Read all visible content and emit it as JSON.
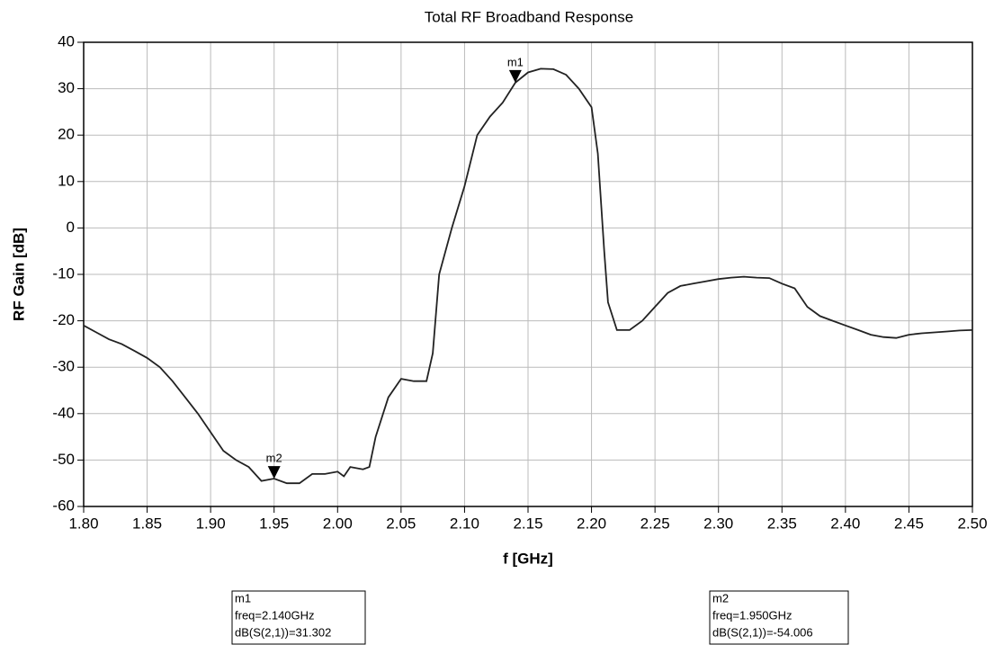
{
  "chart_data": {
    "type": "line",
    "title": "Total RF Broadband Response",
    "x_label": "f  [GHz]",
    "y_label": "RF Gain  [dB]",
    "xlim": [
      1.8,
      2.5
    ],
    "ylim": [
      -60,
      40
    ],
    "xticks": [
      {
        "value": 1.8,
        "label": "1.80"
      },
      {
        "value": 1.85,
        "label": "1.85"
      },
      {
        "value": 1.9,
        "label": "1.90"
      },
      {
        "value": 1.95,
        "label": "1.95"
      },
      {
        "value": 2.0,
        "label": "2.00"
      },
      {
        "value": 2.05,
        "label": "2.05"
      },
      {
        "value": 2.1,
        "label": "2.10"
      },
      {
        "value": 2.15,
        "label": "2.15"
      },
      {
        "value": 2.2,
        "label": "2.20"
      },
      {
        "value": 2.25,
        "label": "2.25"
      },
      {
        "value": 2.3,
        "label": "2.30"
      },
      {
        "value": 2.35,
        "label": "2.35"
      },
      {
        "value": 2.4,
        "label": "2.40"
      },
      {
        "value": 2.45,
        "label": "2.45"
      },
      {
        "value": 2.5,
        "label": "2.50"
      }
    ],
    "yticks": [
      -60,
      -50,
      -40,
      -30,
      -20,
      -10,
      0,
      10,
      20,
      30,
      40
    ],
    "grid": true,
    "color": "#222222",
    "x": [
      1.8,
      1.81,
      1.82,
      1.83,
      1.84,
      1.85,
      1.86,
      1.87,
      1.88,
      1.89,
      1.9,
      1.91,
      1.92,
      1.93,
      1.94,
      1.95,
      1.96,
      1.97,
      1.98,
      1.99,
      2.0,
      2.005,
      2.01,
      2.02,
      2.025,
      2.03,
      2.04,
      2.05,
      2.06,
      2.07,
      2.075,
      2.08,
      2.09,
      2.1,
      2.11,
      2.12,
      2.13,
      2.14,
      2.15,
      2.16,
      2.17,
      2.18,
      2.19,
      2.2,
      2.205,
      2.21,
      2.213,
      2.22,
      2.23,
      2.24,
      2.25,
      2.26,
      2.27,
      2.28,
      2.29,
      2.3,
      2.31,
      2.32,
      2.33,
      2.34,
      2.35,
      2.36,
      2.37,
      2.38,
      2.39,
      2.4,
      2.41,
      2.42,
      2.43,
      2.44,
      2.45,
      2.46,
      2.47,
      2.48,
      2.49,
      2.5
    ],
    "values": [
      -21,
      -22.5,
      -24,
      -25,
      -26.5,
      -28,
      -30,
      -33,
      -36.5,
      -40,
      -44,
      -48,
      -50,
      -51.5,
      -54.5,
      -54,
      -55,
      -55,
      -53,
      -53,
      -52.5,
      -53.5,
      -51.5,
      -52,
      -51.5,
      -45,
      -36.5,
      -32.5,
      -33,
      -33,
      -27,
      -10,
      0,
      9,
      20,
      24,
      27,
      31.302,
      33.5,
      34.3,
      34.2,
      33,
      30,
      26,
      16,
      -5,
      -16,
      -22,
      -22,
      -20,
      -17,
      -14,
      -12.5,
      -12,
      -11.5,
      -11,
      -10.7,
      -10.5,
      -10.7,
      -10.8,
      -12,
      -13,
      -17,
      -19,
      -20,
      -21,
      -22,
      -23,
      -23.5,
      -23.7,
      -23,
      -22.7,
      -22.5,
      -22.3,
      -22.1,
      -22
    ],
    "markers": [
      {
        "name": "m1",
        "x": 2.14,
        "y": 31.302,
        "freq_label": "freq=2.140GHz",
        "value_label": "dB(S(2,1))=31.302"
      },
      {
        "name": "m2",
        "x": 1.95,
        "y": -54.006,
        "freq_label": "freq=1.950GHz",
        "value_label": "dB(S(2,1))=-54.006"
      }
    ]
  }
}
